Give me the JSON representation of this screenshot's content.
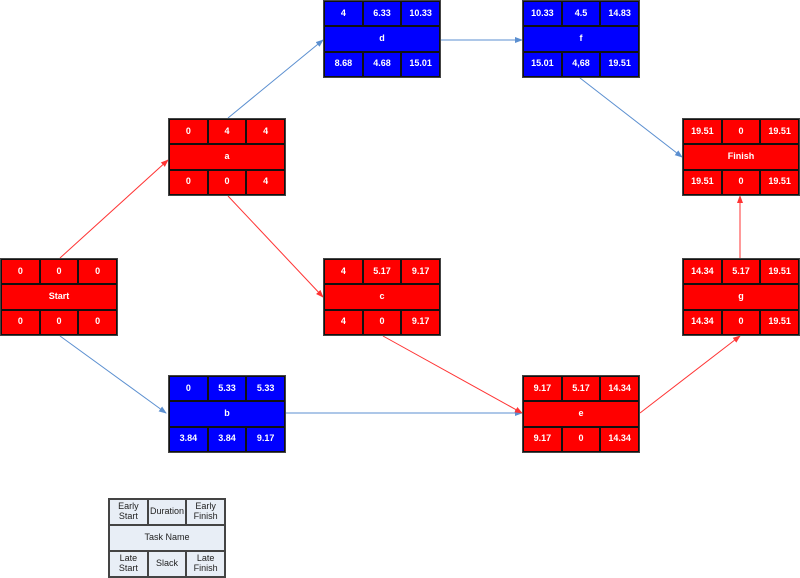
{
  "colors": {
    "critical": "#ff0000",
    "noncritical": "#0000ff",
    "critical_arrow": "#ff3333",
    "noncritical_arrow": "#5b8fd0"
  },
  "tasks": [
    {
      "id": "start",
      "name": "Start",
      "es": "0",
      "duration": "0",
      "ef": "0",
      "ls": "0",
      "slack": "0",
      "lf": "0",
      "critical": true
    },
    {
      "id": "a",
      "name": "a",
      "es": "0",
      "duration": "4",
      "ef": "4",
      "ls": "0",
      "slack": "0",
      "lf": "4",
      "critical": true
    },
    {
      "id": "b",
      "name": "b",
      "es": "0",
      "duration": "5.33",
      "ef": "5.33",
      "ls": "3.84",
      "slack": "3.84",
      "lf": "9.17",
      "critical": false
    },
    {
      "id": "c",
      "name": "c",
      "es": "4",
      "duration": "5.17",
      "ef": "9.17",
      "ls": "4",
      "slack": "0",
      "lf": "9.17",
      "critical": true
    },
    {
      "id": "d",
      "name": "d",
      "es": "4",
      "duration": "6.33",
      "ef": "10.33",
      "ls": "8.68",
      "slack": "4.68",
      "lf": "15.01",
      "critical": false
    },
    {
      "id": "e",
      "name": "e",
      "es": "9.17",
      "duration": "5.17",
      "ef": "14.34",
      "ls": "9.17",
      "slack": "0",
      "lf": "14.34",
      "critical": true
    },
    {
      "id": "f",
      "name": "f",
      "es": "10.33",
      "duration": "4.5",
      "ef": "14.83",
      "ls": "15.01",
      "slack": "4,68",
      "lf": "19.51",
      "critical": false
    },
    {
      "id": "g",
      "name": "g",
      "es": "14.34",
      "duration": "5.17",
      "ef": "19.51",
      "ls": "14.34",
      "slack": "0",
      "lf": "19.51",
      "critical": true
    },
    {
      "id": "finish",
      "name": "Finish",
      "es": "19.51",
      "duration": "0",
      "ef": "19.51",
      "ls": "19.51",
      "slack": "0",
      "lf": "19.51",
      "critical": true
    }
  ],
  "edges": [
    {
      "from": "start",
      "to": "a",
      "critical": true
    },
    {
      "from": "start",
      "to": "b",
      "critical": false
    },
    {
      "from": "a",
      "to": "d",
      "critical": false
    },
    {
      "from": "a",
      "to": "c",
      "critical": true
    },
    {
      "from": "d",
      "to": "f",
      "critical": false
    },
    {
      "from": "b",
      "to": "e",
      "critical": false
    },
    {
      "from": "c",
      "to": "e",
      "critical": true
    },
    {
      "from": "e",
      "to": "g",
      "critical": true
    },
    {
      "from": "g",
      "to": "finish",
      "critical": true
    },
    {
      "from": "f",
      "to": "finish",
      "critical": false
    }
  ],
  "legend": {
    "es": "Early Start",
    "duration": "Duration",
    "ef": "Early Finish",
    "name": "Task Name",
    "ls": "Late Start",
    "slack": "Slack",
    "lf": "Late Finish"
  }
}
